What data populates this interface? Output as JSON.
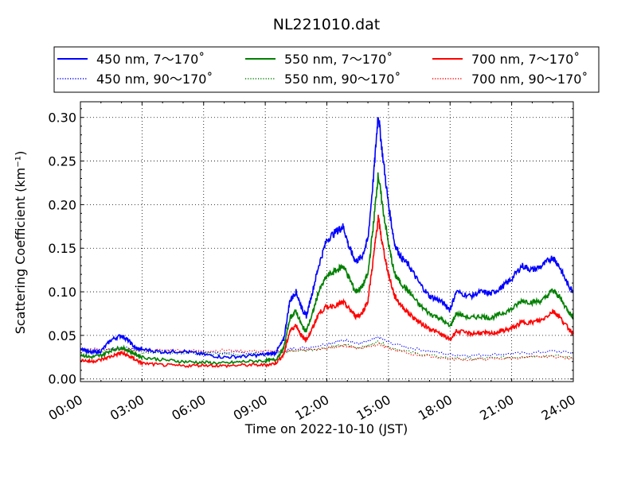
{
  "chart_data": {
    "type": "line",
    "title": "NL221010.dat",
    "xlabel": "Time on 2022-10-10 (JST)",
    "ylabel": "Scattering Coefficient (km⁻¹)",
    "xlim": [
      0,
      24
    ],
    "ylim": [
      -0.003,
      0.318
    ],
    "xticks": [
      0,
      3,
      6,
      9,
      12,
      15,
      18,
      21,
      24
    ],
    "xtick_labels": [
      "00:00",
      "03:00",
      "06:00",
      "09:00",
      "12:00",
      "15:00",
      "18:00",
      "21:00",
      "24:00"
    ],
    "yticks": [
      0.0,
      0.05,
      0.1,
      0.15,
      0.2,
      0.25,
      0.3
    ],
    "ytick_labels": [
      "0.00",
      "0.05",
      "0.10",
      "0.15",
      "0.20",
      "0.25",
      "0.30"
    ],
    "grid": true,
    "legend_position": "top, above plot",
    "colors": {
      "blue": "#0000ff",
      "green": "#008000",
      "red": "#ff0000"
    },
    "series": [
      {
        "name": "450 nm, 7～170˚",
        "color": "#0000ff",
        "style": "solid",
        "x": [
          0,
          0.5,
          1,
          1.5,
          2,
          2.3,
          2.7,
          3,
          4,
          5,
          6,
          7,
          8,
          9,
          9.5,
          9.9,
          10.2,
          10.5,
          10.8,
          11,
          11.3,
          11.6,
          12,
          12.5,
          12.8,
          13.1,
          13.4,
          13.7,
          14,
          14.3,
          14.5,
          14.7,
          15,
          15.3,
          15.6,
          16,
          16.5,
          17,
          17.5,
          18,
          18.3,
          19,
          19.5,
          20,
          20.5,
          21,
          21.5,
          22,
          22.5,
          23,
          23.3,
          23.7,
          24
        ],
        "y": [
          0.036,
          0.03,
          0.032,
          0.045,
          0.05,
          0.045,
          0.035,
          0.034,
          0.031,
          0.032,
          0.028,
          0.025,
          0.026,
          0.028,
          0.03,
          0.045,
          0.09,
          0.1,
          0.08,
          0.072,
          0.1,
          0.13,
          0.16,
          0.17,
          0.175,
          0.15,
          0.135,
          0.14,
          0.16,
          0.24,
          0.305,
          0.26,
          0.2,
          0.155,
          0.14,
          0.13,
          0.11,
          0.095,
          0.09,
          0.08,
          0.1,
          0.095,
          0.1,
          0.098,
          0.105,
          0.115,
          0.13,
          0.125,
          0.13,
          0.14,
          0.13,
          0.11,
          0.1
        ]
      },
      {
        "name": "550 nm, 7～170˚",
        "color": "#008000",
        "style": "solid",
        "x": [
          0,
          0.5,
          1,
          1.5,
          2,
          2.3,
          2.7,
          3,
          4,
          5,
          6,
          7,
          8,
          9,
          9.5,
          9.9,
          10.2,
          10.5,
          10.8,
          11,
          11.3,
          11.6,
          12,
          12.5,
          12.8,
          13.1,
          13.4,
          13.7,
          14,
          14.3,
          14.5,
          14.7,
          15,
          15.3,
          15.6,
          16,
          16.5,
          17,
          17.5,
          18,
          18.3,
          19,
          19.5,
          20,
          20.5,
          21,
          21.5,
          22,
          22.5,
          23,
          23.3,
          23.7,
          24
        ],
        "y": [
          0.028,
          0.025,
          0.027,
          0.033,
          0.036,
          0.033,
          0.028,
          0.025,
          0.022,
          0.02,
          0.019,
          0.018,
          0.02,
          0.021,
          0.022,
          0.035,
          0.07,
          0.078,
          0.06,
          0.055,
          0.075,
          0.1,
          0.118,
          0.125,
          0.13,
          0.115,
          0.1,
          0.105,
          0.12,
          0.185,
          0.235,
          0.2,
          0.155,
          0.12,
          0.11,
          0.1,
          0.085,
          0.075,
          0.07,
          0.06,
          0.075,
          0.07,
          0.072,
          0.07,
          0.075,
          0.08,
          0.09,
          0.088,
          0.09,
          0.102,
          0.095,
          0.08,
          0.07
        ]
      },
      {
        "name": "700 nm, 7～170˚",
        "color": "#ff0000",
        "style": "solid",
        "x": [
          0,
          0.5,
          1,
          1.5,
          2,
          2.3,
          2.7,
          3,
          4,
          5,
          6,
          7,
          8,
          9,
          9.5,
          9.9,
          10.2,
          10.5,
          10.8,
          11,
          11.3,
          11.6,
          12,
          12.5,
          12.8,
          13.1,
          13.4,
          13.7,
          14,
          14.3,
          14.5,
          14.7,
          15,
          15.3,
          15.6,
          16,
          16.5,
          17,
          17.5,
          18,
          18.3,
          19,
          19.5,
          20,
          20.5,
          21,
          21.5,
          22,
          22.5,
          23,
          23.3,
          23.7,
          24
        ],
        "y": [
          0.022,
          0.02,
          0.022,
          0.026,
          0.03,
          0.027,
          0.022,
          0.018,
          0.016,
          0.015,
          0.016,
          0.015,
          0.016,
          0.016,
          0.018,
          0.028,
          0.055,
          0.062,
          0.048,
          0.045,
          0.058,
          0.075,
          0.083,
          0.085,
          0.088,
          0.08,
          0.072,
          0.075,
          0.09,
          0.145,
          0.185,
          0.155,
          0.12,
          0.095,
          0.085,
          0.075,
          0.065,
          0.058,
          0.052,
          0.045,
          0.055,
          0.052,
          0.053,
          0.052,
          0.055,
          0.058,
          0.065,
          0.065,
          0.068,
          0.078,
          0.072,
          0.06,
          0.052
        ]
      },
      {
        "name": "450 nm, 90～170˚",
        "color": "#0000ff",
        "style": "dotted",
        "x": [
          0,
          1,
          2,
          3,
          4,
          5,
          6,
          7,
          8,
          9,
          9.8,
          10.3,
          11,
          12,
          12.5,
          13,
          13.5,
          14,
          14.5,
          15,
          16,
          17,
          18,
          19,
          20,
          21,
          22,
          23,
          24
        ],
        "y": [
          0.035,
          0.034,
          0.036,
          0.033,
          0.032,
          0.031,
          0.031,
          0.03,
          0.03,
          0.03,
          0.031,
          0.035,
          0.036,
          0.04,
          0.043,
          0.045,
          0.04,
          0.043,
          0.048,
          0.042,
          0.036,
          0.032,
          0.028,
          0.027,
          0.028,
          0.029,
          0.03,
          0.032,
          0.03
        ]
      },
      {
        "name": "550 nm, 90～170˚",
        "color": "#008000",
        "style": "dotted",
        "x": [
          0,
          1,
          2,
          3,
          4,
          5,
          6,
          7,
          8,
          9,
          9.8,
          10.3,
          11,
          12,
          12.5,
          13,
          13.5,
          14,
          14.5,
          15,
          16,
          17,
          18,
          19,
          20,
          21,
          22,
          23,
          24
        ],
        "y": [
          0.033,
          0.032,
          0.034,
          0.031,
          0.03,
          0.03,
          0.029,
          0.029,
          0.028,
          0.029,
          0.03,
          0.032,
          0.033,
          0.036,
          0.038,
          0.039,
          0.036,
          0.038,
          0.043,
          0.037,
          0.031,
          0.027,
          0.024,
          0.023,
          0.024,
          0.025,
          0.026,
          0.027,
          0.024
        ]
      },
      {
        "name": "700 nm, 90～170˚",
        "color": "#ff0000",
        "style": "dotted",
        "x": [
          0,
          1,
          2,
          3,
          4,
          5,
          6,
          7,
          8,
          9,
          9.8,
          10.3,
          11,
          12,
          12.5,
          13,
          13.5,
          14,
          14.5,
          15,
          16,
          17,
          18,
          19,
          20,
          21,
          22,
          23,
          24
        ],
        "y": [
          0.034,
          0.033,
          0.034,
          0.033,
          0.033,
          0.033,
          0.032,
          0.033,
          0.032,
          0.032,
          0.032,
          0.033,
          0.033,
          0.035,
          0.037,
          0.038,
          0.035,
          0.037,
          0.04,
          0.035,
          0.029,
          0.026,
          0.023,
          0.022,
          0.023,
          0.024,
          0.025,
          0.026,
          0.023
        ]
      }
    ]
  }
}
